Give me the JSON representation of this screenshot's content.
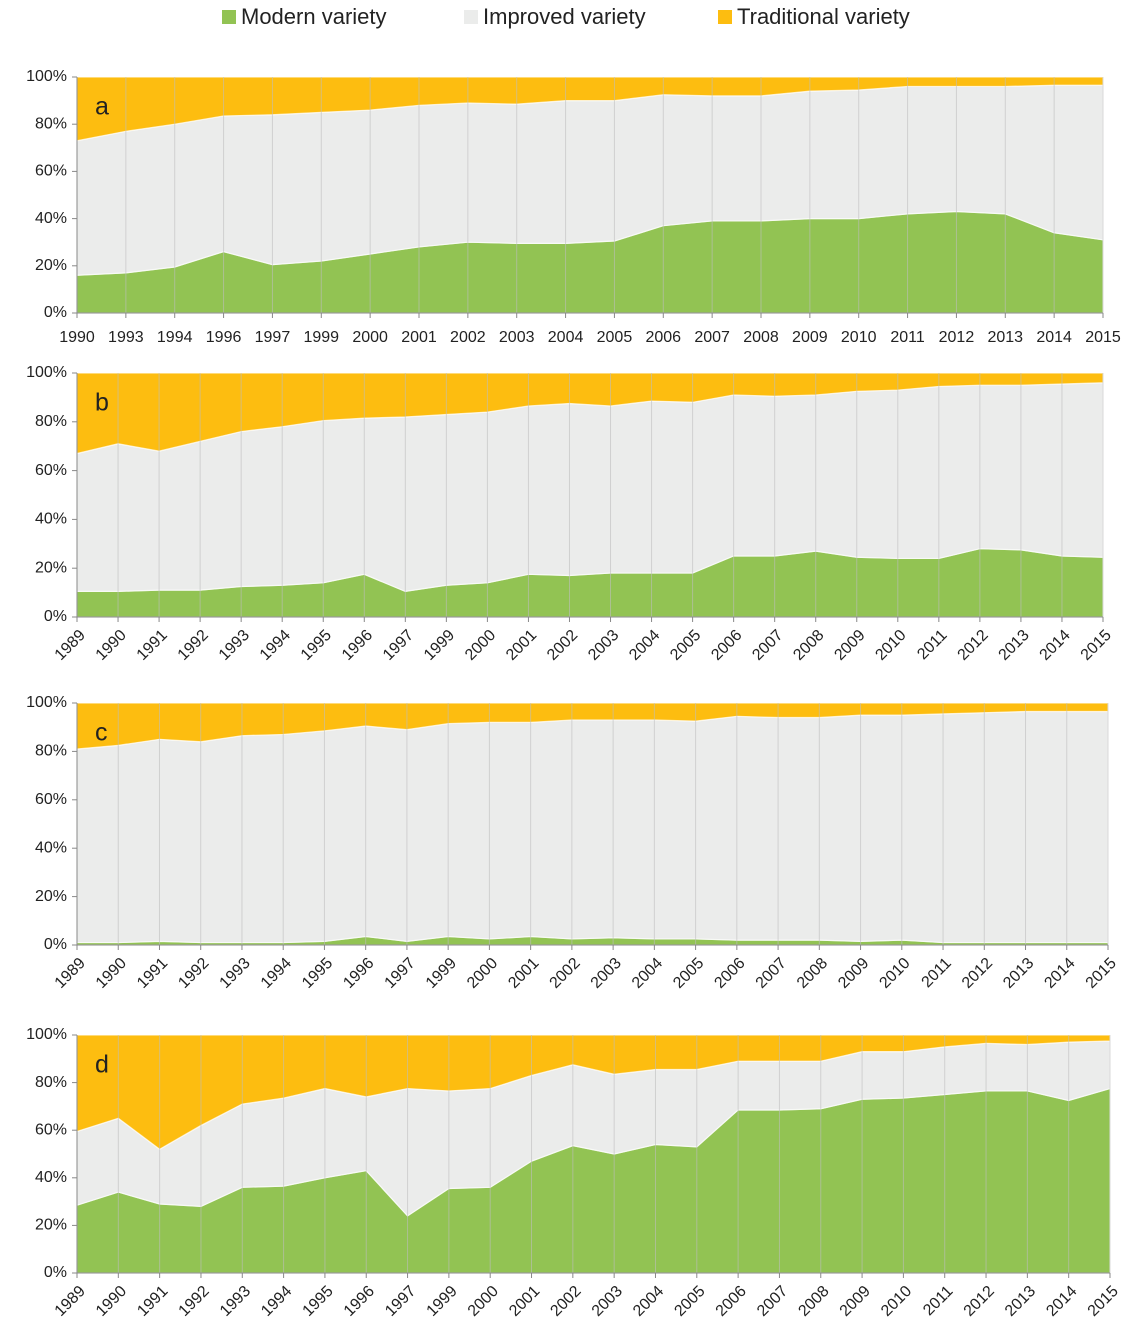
{
  "chart_data": [
    {
      "type": "stacked_area",
      "panel_label": "a",
      "legend": "top",
      "rotate_xlabels": false,
      "categories": [
        "1990",
        "1993",
        "1994",
        "1996",
        "1997",
        "1999",
        "2000",
        "2001",
        "2002",
        "2003",
        "2004",
        "2005",
        "2006",
        "2007",
        "2008",
        "2009",
        "2010",
        "2011",
        "2012",
        "2013",
        "2014",
        "2015"
      ],
      "series": [
        {
          "name": "Modern variety",
          "color": "#92c353",
          "values": [
            16,
            17,
            19.5,
            26,
            20.5,
            22,
            25,
            28,
            30,
            29.5,
            29.5,
            30.5,
            37,
            39,
            39,
            40,
            40,
            42,
            43,
            42,
            34,
            31
          ]
        },
        {
          "name": "Improved variety",
          "color": "#ebeceb",
          "values": [
            57,
            60,
            60.5,
            57.5,
            63.5,
            63,
            61,
            60,
            59,
            59,
            60.5,
            59.5,
            55.5,
            53,
            53,
            54,
            54.5,
            54,
            53,
            54,
            62.5,
            65.5
          ]
        },
        {
          "name": "Traditional variety",
          "color": "#fdbd10",
          "values": [
            27,
            23,
            20,
            16.5,
            16,
            15,
            14,
            12,
            11,
            11.5,
            10,
            10,
            7.5,
            8,
            8,
            6,
            5.5,
            4,
            4,
            4,
            3.5,
            3.5
          ]
        }
      ],
      "ylim": [
        0,
        100
      ],
      "yticks": [
        {
          "value": 0,
          "label": "0%"
        },
        {
          "value": 20,
          "label": "20%"
        },
        {
          "value": 40,
          "label": "40%"
        },
        {
          "value": 60,
          "label": "60%"
        },
        {
          "value": 80,
          "label": "80%"
        },
        {
          "value": 100,
          "label": "100%"
        }
      ]
    },
    {
      "type": "stacked_area",
      "panel_label": "b",
      "rotate_xlabels": true,
      "categories": [
        "1989",
        "1990",
        "1991",
        "1992",
        "1993",
        "1994",
        "1995",
        "1996",
        "1997",
        "1999",
        "2000",
        "2001",
        "2002",
        "2003",
        "2004",
        "2005",
        "2006",
        "2007",
        "2008",
        "2009",
        "2010",
        "2011",
        "2012",
        "2013",
        "2014",
        "2015"
      ],
      "series": [
        {
          "name": "Modern variety",
          "color": "#92c353",
          "values": [
            10.5,
            10.5,
            11,
            11,
            12.5,
            13,
            14,
            17.5,
            10.5,
            13,
            14,
            17.5,
            17,
            18,
            18,
            18,
            25,
            25,
            27,
            24.5,
            24,
            24,
            28,
            27.5,
            25,
            24.5
          ]
        },
        {
          "name": "Improved variety",
          "color": "#ebeceb",
          "values": [
            56.5,
            60.5,
            57,
            61,
            63.5,
            65,
            66.5,
            64,
            71.5,
            70,
            70,
            69,
            70.5,
            68.5,
            70.5,
            70,
            66,
            65.5,
            64,
            68,
            69,
            70.5,
            67,
            67.5,
            70.5,
            71.5
          ]
        },
        {
          "name": "Traditional variety",
          "color": "#fdbd10",
          "values": [
            33,
            29,
            32,
            28,
            24,
            22,
            19.5,
            18.5,
            18,
            17,
            16,
            13.5,
            12.5,
            13.5,
            11.5,
            12,
            9,
            9.5,
            9,
            7.5,
            7,
            5.5,
            5,
            5,
            4.5,
            4
          ]
        }
      ],
      "ylim": [
        0,
        100
      ],
      "yticks": [
        {
          "value": 0,
          "label": "0%"
        },
        {
          "value": 20,
          "label": "20%"
        },
        {
          "value": 40,
          "label": "40%"
        },
        {
          "value": 60,
          "label": "60%"
        },
        {
          "value": 80,
          "label": "80%"
        },
        {
          "value": 100,
          "label": "100%"
        }
      ]
    },
    {
      "type": "stacked_area",
      "panel_label": "c",
      "rotate_xlabels": true,
      "categories": [
        "1989",
        "1990",
        "1991",
        "1992",
        "1993",
        "1994",
        "1995",
        "1996",
        "1997",
        "1999",
        "2000",
        "2001",
        "2002",
        "2003",
        "2004",
        "2005",
        "2006",
        "2007",
        "2008",
        "2009",
        "2010",
        "2011",
        "2012",
        "2013",
        "2014",
        "2015"
      ],
      "series": [
        {
          "name": "Modern variety",
          "color": "#92c353",
          "values": [
            1,
            1,
            1.5,
            1,
            1,
            1,
            1.5,
            3.5,
            1.5,
            3.5,
            2.5,
            3.5,
            2.5,
            3,
            2.5,
            2.5,
            2,
            2,
            2,
            1.5,
            2,
            1,
            1,
            1,
            1,
            1
          ]
        },
        {
          "name": "Improved variety",
          "color": "#ebeceb",
          "values": [
            80,
            81.5,
            83.5,
            83,
            85.5,
            86,
            87,
            87,
            87.5,
            88,
            89.5,
            88.5,
            90.5,
            90,
            90.5,
            90,
            92.5,
            92,
            92,
            93.5,
            93,
            94.5,
            95,
            95.5,
            95.5,
            95.5
          ]
        },
        {
          "name": "Traditional variety",
          "color": "#fdbd10",
          "values": [
            19,
            17.5,
            15,
            16,
            13.5,
            13,
            11.5,
            9.5,
            11,
            8.5,
            8,
            8,
            7,
            7,
            7,
            7.5,
            5.5,
            6,
            6,
            5,
            5,
            4.5,
            4,
            3.5,
            3.5,
            3.5
          ]
        }
      ],
      "ylim": [
        0,
        100
      ],
      "yticks": [
        {
          "value": 0,
          "label": "0%"
        },
        {
          "value": 20,
          "label": "20%"
        },
        {
          "value": 40,
          "label": "40%"
        },
        {
          "value": 60,
          "label": "60%"
        },
        {
          "value": 80,
          "label": "80%"
        },
        {
          "value": 100,
          "label": "100%"
        }
      ]
    },
    {
      "type": "stacked_area",
      "panel_label": "d",
      "rotate_xlabels": true,
      "categories": [
        "1989",
        "1990",
        "1991",
        "1992",
        "1993",
        "1994",
        "1995",
        "1996",
        "1997",
        "1999",
        "2000",
        "2001",
        "2002",
        "2003",
        "2004",
        "2005",
        "2006",
        "2007",
        "2008",
        "2009",
        "2010",
        "2011",
        "2012",
        "2013",
        "2014",
        "2015"
      ],
      "series": [
        {
          "name": "Modern variety",
          "color": "#92c353",
          "values": [
            28.5,
            34,
            29,
            28,
            36,
            36.5,
            40,
            43,
            24,
            35.5,
            36,
            47,
            53.5,
            50,
            54,
            53,
            68.5,
            68.5,
            69,
            73,
            73.5,
            75,
            76.5,
            76.5,
            72.5,
            77.5
          ]
        },
        {
          "name": "Improved variety",
          "color": "#ebeceb",
          "values": [
            31,
            31,
            23,
            34,
            35,
            37,
            37.5,
            31,
            53.5,
            41,
            41.5,
            36,
            34,
            33.5,
            31.5,
            32.5,
            20.5,
            20.5,
            20,
            20,
            19.5,
            20,
            20,
            19.5,
            24.5,
            20
          ]
        },
        {
          "name": "Traditional variety",
          "color": "#fdbd10",
          "values": [
            40.5,
            35,
            48,
            38,
            29,
            26.5,
            22.5,
            26,
            22.5,
            23.5,
            22.5,
            17,
            12.5,
            16.5,
            14.5,
            14.5,
            11,
            11,
            11,
            7,
            7,
            5,
            3.5,
            4,
            3,
            2.5
          ]
        }
      ],
      "ylim": [
        0,
        100
      ],
      "yticks": [
        {
          "value": 0,
          "label": "0%"
        },
        {
          "value": 20,
          "label": "20%"
        },
        {
          "value": 40,
          "label": "40%"
        },
        {
          "value": 60,
          "label": "60%"
        },
        {
          "value": 80,
          "label": "80%"
        },
        {
          "value": 100,
          "label": "100%"
        }
      ]
    }
  ]
}
